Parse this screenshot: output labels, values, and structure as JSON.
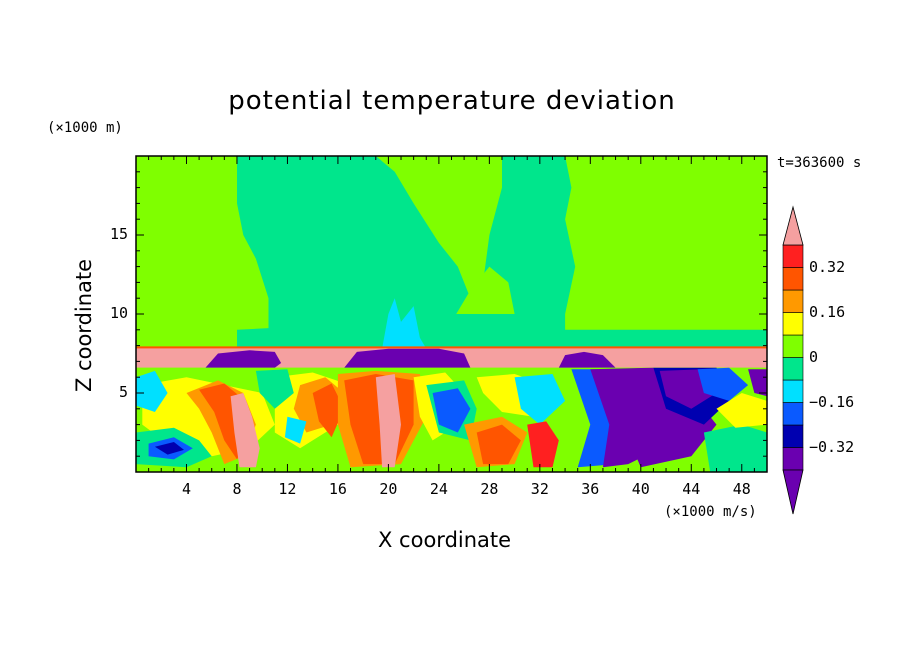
{
  "title": "potential temperature deviation",
  "time_label": "t=363600 s",
  "colors": {
    "background_green": "#7fff00",
    "teal": "#00e68c",
    "cyan": "#00e0ff",
    "blue": "#0a5aff",
    "dark_blue": "#0000b0",
    "purple": "#6a00b0",
    "yellow": "#ffff00",
    "orange": "#ff9900",
    "red_orange": "#ff5500",
    "red": "#ff2020",
    "pink": "#f5a0a0"
  },
  "chart_data": {
    "type": "heatmap",
    "title": "potential temperature deviation",
    "xlabel": "X coordinate",
    "ylabel": "Z coordinate",
    "x_unit": "(×1000 m/s)",
    "y_unit": "(×1000 m)",
    "xlim": [
      0,
      50
    ],
    "ylim": [
      0,
      20
    ],
    "x_ticks": [
      4,
      8,
      12,
      16,
      20,
      24,
      28,
      32,
      36,
      40,
      44,
      48
    ],
    "y_ticks": [
      5,
      10,
      15
    ],
    "grid": false,
    "colorbar": {
      "placement": "right",
      "levels": [
        -0.4,
        -0.32,
        -0.24,
        -0.16,
        -0.08,
        0,
        0.08,
        0.16,
        0.24,
        0.32,
        0.4
      ],
      "tick_labels": [
        "0.32",
        "0.16",
        "0",
        "−0.16",
        "−0.32"
      ],
      "tick_values": [
        0.32,
        0.16,
        0,
        -0.16,
        -0.32
      ]
    }
  }
}
